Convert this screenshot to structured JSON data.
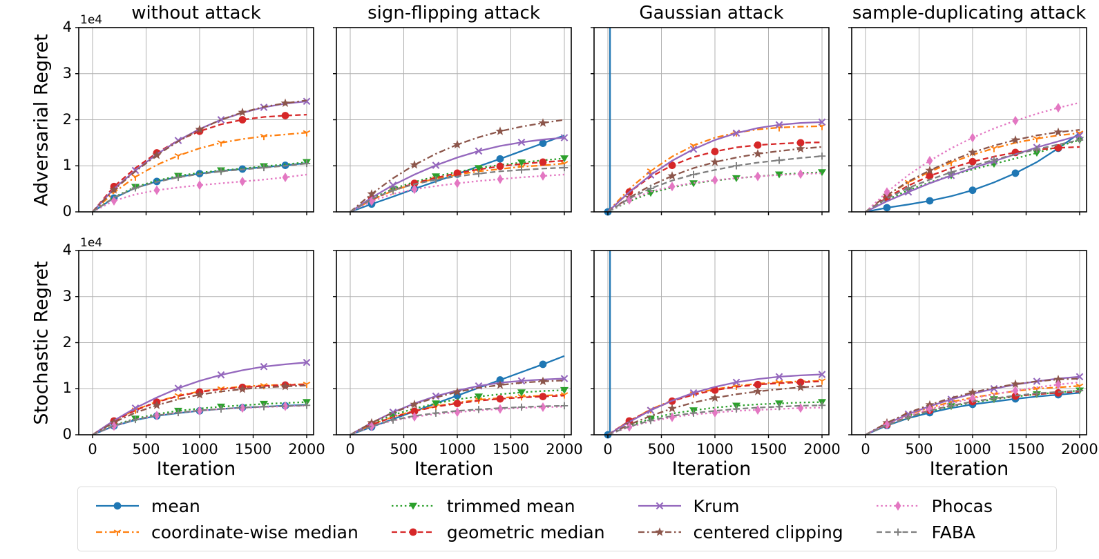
{
  "figure": {
    "row_labels": [
      "Adversarial Regret",
      "Stochastic Regret"
    ],
    "col_titles": [
      "without attack",
      "sign-flipping attack",
      "Gaussian attack",
      "sample-duplicating attack"
    ],
    "xlabel": "Iteration",
    "y_offset_label": "1e4",
    "grid_color": "#b0b0b0",
    "spine_color": "#000000"
  },
  "chart_data": {
    "type": "line",
    "x": [
      0,
      200,
      400,
      600,
      800,
      1000,
      1200,
      1400,
      1600,
      1800,
      2000
    ],
    "x_ticks": [
      0,
      500,
      1000,
      1500,
      2000
    ],
    "y_ticks": [
      0,
      1,
      2,
      3,
      4
    ],
    "y_unit": "1e4",
    "ylim": [
      0,
      40000
    ],
    "xlim": [
      0,
      2000
    ],
    "grid": true,
    "legend_position": "bottom",
    "series_styles": [
      {
        "name": "mean",
        "color": "#1f77b4",
        "dash": "solid",
        "marker": "circle",
        "mphase": 1
      },
      {
        "name": "coordinate-wise median",
        "color": "#ff7f0e",
        "dash": "dashdot",
        "marker": "tri-down-lines",
        "mphase": 2
      },
      {
        "name": "trimmed mean",
        "color": "#2ca02c",
        "dash": "dotted",
        "marker": "triangle-down",
        "mphase": 2
      },
      {
        "name": "geometric median",
        "color": "#d62728",
        "dash": "dashed",
        "marker": "circle",
        "mphase": 1
      },
      {
        "name": "Krum",
        "color": "#9467bd",
        "dash": "solid",
        "marker": "x",
        "mphase": 2
      },
      {
        "name": "centered clipping",
        "color": "#8c564b",
        "dash": "dashdot",
        "marker": "star",
        "mphase": 1
      },
      {
        "name": "Phocas",
        "color": "#e377c2",
        "dash": "dotted",
        "marker": "thin-diamond",
        "mphase": 1
      },
      {
        "name": "FABA",
        "color": "#7f7f7f",
        "dash": "dashed",
        "marker": "plus",
        "mphase": 2
      }
    ],
    "subplots": [
      {
        "row": 0,
        "col": 0,
        "title": "without attack",
        "series": {
          "mean": [
            0,
            0.3,
            0.52,
            0.66,
            0.76,
            0.83,
            0.89,
            0.93,
            0.97,
            1.01,
            1.06
          ],
          "coordinate-wise median": [
            0,
            0.42,
            0.76,
            1.02,
            1.22,
            1.38,
            1.5,
            1.58,
            1.64,
            1.68,
            1.72
          ],
          "trimmed mean": [
            0,
            0.32,
            0.54,
            0.68,
            0.78,
            0.85,
            0.9,
            0.94,
            0.99,
            1.03,
            1.08
          ],
          "geometric median": [
            0,
            0.55,
            0.95,
            1.28,
            1.55,
            1.75,
            1.9,
            2.0,
            2.06,
            2.09,
            2.11
          ],
          "Krum": [
            0,
            0.5,
            0.9,
            1.25,
            1.55,
            1.8,
            2.0,
            2.15,
            2.27,
            2.35,
            2.4
          ],
          "centered clipping": [
            0,
            0.48,
            0.88,
            1.23,
            1.53,
            1.79,
            2.0,
            2.16,
            2.28,
            2.36,
            2.42
          ],
          "Phocas": [
            0,
            0.24,
            0.38,
            0.47,
            0.53,
            0.58,
            0.62,
            0.66,
            0.7,
            0.75,
            0.81
          ],
          "FABA": [
            0,
            0.31,
            0.52,
            0.65,
            0.75,
            0.82,
            0.88,
            0.92,
            0.96,
            1.0,
            1.05
          ]
        }
      },
      {
        "row": 0,
        "col": 1,
        "title": "sign-flipping attack",
        "series": {
          "mean": [
            0,
            0.17,
            0.33,
            0.5,
            0.66,
            0.82,
            0.99,
            1.15,
            1.32,
            1.49,
            1.66
          ],
          "coordinate-wise median": [
            0,
            0.26,
            0.46,
            0.61,
            0.72,
            0.81,
            0.88,
            0.93,
            0.98,
            1.01,
            1.05
          ],
          "trimmed mean": [
            0,
            0.29,
            0.5,
            0.65,
            0.77,
            0.87,
            0.95,
            1.02,
            1.07,
            1.12,
            1.16
          ],
          "geometric median": [
            0,
            0.27,
            0.47,
            0.62,
            0.74,
            0.84,
            0.92,
            0.99,
            1.04,
            1.08,
            1.11
          ],
          "Krum": [
            0,
            0.31,
            0.58,
            0.81,
            1.01,
            1.18,
            1.32,
            1.43,
            1.51,
            1.57,
            1.61
          ],
          "centered clipping": [
            0,
            0.39,
            0.73,
            1.02,
            1.26,
            1.46,
            1.62,
            1.75,
            1.85,
            1.93,
            2.0
          ],
          "Phocas": [
            0,
            0.23,
            0.39,
            0.49,
            0.56,
            0.62,
            0.67,
            0.71,
            0.75,
            0.78,
            0.81
          ],
          "FABA": [
            0,
            0.28,
            0.47,
            0.6,
            0.7,
            0.77,
            0.83,
            0.88,
            0.91,
            0.94,
            0.96
          ]
        }
      },
      {
        "row": 0,
        "col": 2,
        "title": "Gaussian attack",
        "series": {
          "mean": {
            "x": [
              0,
              20,
              20
            ],
            "y": [
              0,
              0,
              4.3
            ]
          },
          "coordinate-wise median": [
            0,
            0.5,
            0.89,
            1.2,
            1.44,
            1.61,
            1.72,
            1.79,
            1.83,
            1.85,
            1.86
          ],
          "trimmed mean": [
            0,
            0.23,
            0.41,
            0.53,
            0.62,
            0.68,
            0.73,
            0.77,
            0.81,
            0.84,
            0.86
          ],
          "geometric median": [
            0,
            0.43,
            0.76,
            1.01,
            1.19,
            1.31,
            1.4,
            1.45,
            1.48,
            1.5,
            1.51
          ],
          "Krum": [
            0,
            0.43,
            0.8,
            1.11,
            1.36,
            1.56,
            1.71,
            1.82,
            1.89,
            1.93,
            1.95
          ],
          "centered clipping": [
            0,
            0.31,
            0.57,
            0.78,
            0.95,
            1.08,
            1.18,
            1.26,
            1.32,
            1.37,
            1.41
          ],
          "Phocas": [
            0,
            0.26,
            0.44,
            0.55,
            0.63,
            0.69,
            0.73,
            0.77,
            0.8,
            0.82,
            0.84
          ],
          "FABA": [
            0,
            0.29,
            0.51,
            0.68,
            0.81,
            0.91,
            1.0,
            1.07,
            1.12,
            1.17,
            1.21
          ]
        }
      },
      {
        "row": 0,
        "col": 3,
        "title": "sample-duplicating attack",
        "series": {
          "mean": [
            0,
            0.09,
            0.16,
            0.24,
            0.34,
            0.47,
            0.64,
            0.84,
            1.08,
            1.38,
            1.71
          ],
          "coordinate-wise median": [
            0,
            0.36,
            0.64,
            0.87,
            1.07,
            1.24,
            1.38,
            1.5,
            1.59,
            1.66,
            1.71
          ],
          "trimmed mean": [
            0,
            0.26,
            0.47,
            0.64,
            0.79,
            0.92,
            1.04,
            1.16,
            1.28,
            1.42,
            1.56
          ],
          "geometric median": [
            0,
            0.31,
            0.57,
            0.78,
            0.95,
            1.09,
            1.2,
            1.29,
            1.35,
            1.39,
            1.41
          ],
          "Krum": [
            0,
            0.23,
            0.43,
            0.62,
            0.79,
            0.95,
            1.1,
            1.25,
            1.4,
            1.53,
            1.66
          ],
          "centered clipping": [
            0,
            0.36,
            0.66,
            0.9,
            1.11,
            1.29,
            1.44,
            1.56,
            1.66,
            1.73,
            1.78
          ],
          "Phocas": [
            0,
            0.43,
            0.8,
            1.11,
            1.38,
            1.61,
            1.81,
            1.98,
            2.13,
            2.26,
            2.37
          ],
          "FABA": [
            0,
            0.29,
            0.52,
            0.7,
            0.86,
            1.0,
            1.13,
            1.25,
            1.36,
            1.46,
            1.56
          ]
        }
      },
      {
        "row": 1,
        "col": 0,
        "title": "without attack",
        "series": {
          "mean": [
            0,
            0.19,
            0.32,
            0.41,
            0.47,
            0.52,
            0.56,
            0.59,
            0.61,
            0.63,
            0.65
          ],
          "coordinate-wise median": [
            0,
            0.31,
            0.54,
            0.72,
            0.85,
            0.94,
            1.0,
            1.05,
            1.07,
            1.09,
            1.1
          ],
          "trimmed mean": [
            0,
            0.21,
            0.35,
            0.45,
            0.52,
            0.57,
            0.61,
            0.64,
            0.67,
            0.69,
            0.71
          ],
          "geometric median": [
            0,
            0.3,
            0.53,
            0.71,
            0.84,
            0.93,
            0.99,
            1.03,
            1.06,
            1.08,
            1.09
          ],
          "Krum": [
            0,
            0.31,
            0.58,
            0.81,
            1.01,
            1.17,
            1.3,
            1.4,
            1.48,
            1.53,
            1.57
          ],
          "centered clipping": [
            0,
            0.27,
            0.48,
            0.64,
            0.77,
            0.87,
            0.94,
            0.99,
            1.03,
            1.05,
            1.07
          ],
          "Phocas": [
            0,
            0.19,
            0.33,
            0.42,
            0.48,
            0.52,
            0.56,
            0.58,
            0.6,
            0.62,
            0.63
          ],
          "FABA": [
            0,
            0.2,
            0.33,
            0.42,
            0.48,
            0.53,
            0.56,
            0.59,
            0.61,
            0.62,
            0.64
          ]
        }
      },
      {
        "row": 1,
        "col": 1,
        "title": "sign-flipping attack",
        "series": {
          "mean": [
            0,
            0.17,
            0.34,
            0.51,
            0.68,
            0.85,
            1.02,
            1.19,
            1.36,
            1.53,
            1.71
          ],
          "coordinate-wise median": [
            0,
            0.22,
            0.39,
            0.52,
            0.62,
            0.7,
            0.76,
            0.8,
            0.83,
            0.85,
            0.87
          ],
          "trimmed mean": [
            0,
            0.24,
            0.43,
            0.57,
            0.68,
            0.77,
            0.83,
            0.88,
            0.92,
            0.95,
            0.97
          ],
          "geometric median": [
            0,
            0.22,
            0.38,
            0.51,
            0.61,
            0.68,
            0.74,
            0.78,
            0.81,
            0.83,
            0.85
          ],
          "Krum": [
            0,
            0.26,
            0.49,
            0.68,
            0.84,
            0.96,
            1.06,
            1.13,
            1.17,
            1.2,
            1.22
          ],
          "centered clipping": [
            0,
            0.26,
            0.48,
            0.66,
            0.81,
            0.93,
            1.02,
            1.08,
            1.13,
            1.16,
            1.18
          ],
          "Phocas": [
            0,
            0.18,
            0.31,
            0.39,
            0.45,
            0.49,
            0.53,
            0.56,
            0.58,
            0.6,
            0.61
          ],
          "FABA": [
            0,
            0.19,
            0.32,
            0.41,
            0.47,
            0.52,
            0.55,
            0.58,
            0.6,
            0.62,
            0.63
          ]
        }
      },
      {
        "row": 1,
        "col": 2,
        "title": "Gaussian attack",
        "series": {
          "mean": {
            "x": [
              0,
              20,
              20
            ],
            "y": [
              0,
              0,
              4.3
            ]
          },
          "coordinate-wise median": [
            0,
            0.3,
            0.55,
            0.75,
            0.89,
            0.99,
            1.06,
            1.11,
            1.14,
            1.16,
            1.17
          ],
          "trimmed mean": [
            0,
            0.2,
            0.35,
            0.46,
            0.53,
            0.59,
            0.63,
            0.66,
            0.68,
            0.7,
            0.71
          ],
          "geometric median": [
            0,
            0.3,
            0.54,
            0.73,
            0.87,
            0.97,
            1.04,
            1.09,
            1.12,
            1.14,
            1.16
          ],
          "Krum": [
            0,
            0.28,
            0.53,
            0.74,
            0.91,
            1.04,
            1.14,
            1.21,
            1.26,
            1.29,
            1.31
          ],
          "centered clipping": [
            0,
            0.22,
            0.41,
            0.57,
            0.7,
            0.8,
            0.88,
            0.94,
            0.99,
            1.03,
            1.06
          ],
          "Phocas": [
            0,
            0.17,
            0.29,
            0.38,
            0.44,
            0.48,
            0.52,
            0.54,
            0.56,
            0.58,
            0.59
          ],
          "FABA": [
            0,
            0.18,
            0.31,
            0.41,
            0.47,
            0.52,
            0.56,
            0.59,
            0.61,
            0.63,
            0.64
          ]
        }
      },
      {
        "row": 1,
        "col": 3,
        "title": "sample-duplicating attack",
        "series": {
          "mean": [
            0,
            0.2,
            0.36,
            0.48,
            0.58,
            0.66,
            0.72,
            0.78,
            0.83,
            0.87,
            0.91
          ],
          "coordinate-wise median": [
            0,
            0.24,
            0.44,
            0.59,
            0.71,
            0.81,
            0.88,
            0.95,
            1.0,
            1.03,
            1.06
          ],
          "trimmed mean": [
            0,
            0.21,
            0.38,
            0.51,
            0.62,
            0.7,
            0.77,
            0.83,
            0.88,
            0.92,
            0.96
          ],
          "geometric median": [
            0,
            0.22,
            0.39,
            0.53,
            0.63,
            0.72,
            0.79,
            0.84,
            0.88,
            0.91,
            0.94
          ],
          "Krum": [
            0,
            0.24,
            0.45,
            0.62,
            0.77,
            0.89,
            1.0,
            1.09,
            1.16,
            1.22,
            1.26
          ],
          "centered clipping": [
            0,
            0.26,
            0.48,
            0.65,
            0.8,
            0.92,
            1.02,
            1.1,
            1.16,
            1.2,
            1.22
          ],
          "Phocas": [
            0,
            0.22,
            0.41,
            0.56,
            0.68,
            0.79,
            0.88,
            0.96,
            1.03,
            1.09,
            1.14
          ],
          "FABA": [
            0,
            0.21,
            0.38,
            0.52,
            0.63,
            0.72,
            0.79,
            0.85,
            0.9,
            0.93,
            0.96
          ]
        }
      }
    ]
  },
  "legend": {
    "entries": [
      "mean",
      "coordinate-wise median",
      "trimmed mean",
      "geometric median",
      "Krum",
      "centered clipping",
      "Phocas",
      "FABA"
    ]
  }
}
